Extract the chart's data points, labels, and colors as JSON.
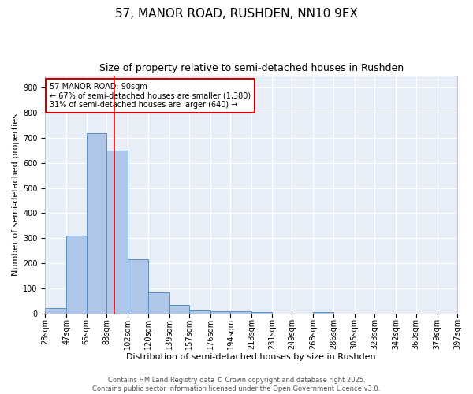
{
  "title1": "57, MANOR ROAD, RUSHDEN, NN10 9EX",
  "title2": "Size of property relative to semi-detached houses in Rushden",
  "xlabel": "Distribution of semi-detached houses by size in Rushden",
  "ylabel": "Number of semi-detached properties",
  "bins": [
    28,
    47,
    65,
    83,
    102,
    120,
    139,
    157,
    176,
    194,
    213,
    231,
    249,
    268,
    286,
    305,
    323,
    342,
    360,
    379,
    397
  ],
  "values": [
    20,
    310,
    720,
    650,
    215,
    85,
    35,
    12,
    10,
    8,
    5,
    0,
    0,
    5,
    0,
    0,
    0,
    0,
    0,
    0
  ],
  "bar_color": "#aec6e8",
  "bar_edge_color": "#5a8fc2",
  "red_line_x": 90,
  "annotation_line1": "57 MANOR ROAD: 90sqm",
  "annotation_line2": "← 67% of semi-detached houses are smaller (1,380)",
  "annotation_line3": "31% of semi-detached houses are larger (640) →",
  "annotation_box_color": "#ffffff",
  "annotation_box_edge_color": "#cc0000",
  "ylim": [
    0,
    950
  ],
  "yticks": [
    0,
    100,
    200,
    300,
    400,
    500,
    600,
    700,
    800,
    900
  ],
  "background_color": "#e8eef7",
  "footer1": "Contains HM Land Registry data © Crown copyright and database right 2025.",
  "footer2": "Contains public sector information licensed under the Open Government Licence v3.0.",
  "title1_fontsize": 11,
  "title2_fontsize": 9,
  "axis_fontsize": 8,
  "tick_fontsize": 7,
  "annotation_fontsize": 7,
  "footer_fontsize": 6
}
